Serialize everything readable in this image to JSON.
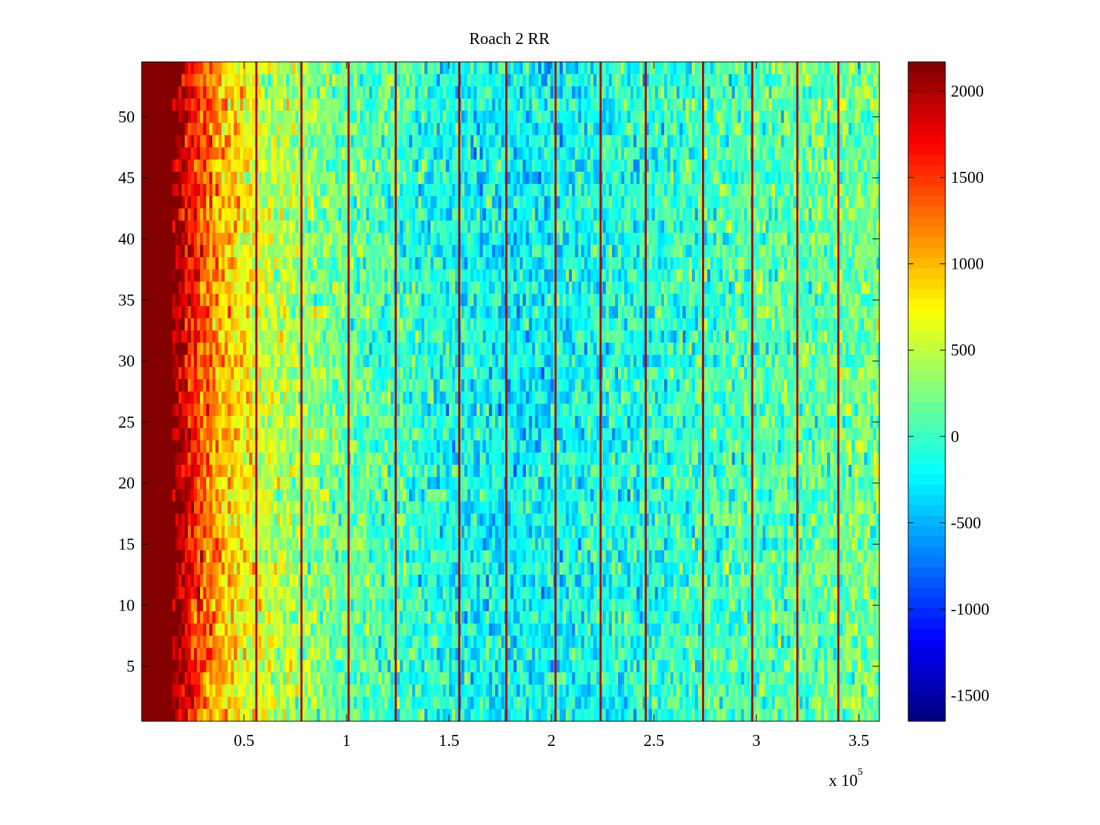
{
  "chart_data": {
    "type": "heatmap",
    "title": "Roach 2 RR",
    "xlabel": "",
    "ylabel": "",
    "x_exponent_label": "x 10",
    "x_exponent_power": "5",
    "xlim": [
      0,
      360000
    ],
    "ylim": [
      0.5,
      54.5
    ],
    "x_scale_divisor": 100000,
    "x_ticks": [
      0.5,
      1,
      1.5,
      2,
      2.5,
      3,
      3.5
    ],
    "x_tick_labels": [
      "0.5",
      "1",
      "1.5",
      "2",
      "2.5",
      "3",
      "3.5"
    ],
    "y_ticks": [
      5,
      10,
      15,
      20,
      25,
      30,
      35,
      40,
      45,
      50
    ],
    "y_tick_labels": [
      "5",
      "10",
      "15",
      "20",
      "25",
      "30",
      "35",
      "40",
      "45",
      "50"
    ],
    "colorbar": {
      "colormap": "jet",
      "clim": [
        -1650,
        2170
      ],
      "ticks": [
        -1500,
        -1000,
        -500,
        0,
        500,
        1000,
        1500,
        2000
      ],
      "tick_labels": [
        "-1500",
        "-1000",
        "-500",
        "0",
        "500",
        "1000",
        "1500",
        "2000"
      ]
    },
    "rows": 54,
    "column_profile": {
      "x": [
        0,
        15000,
        20000,
        25000,
        30000,
        40000,
        50000,
        60000,
        70000,
        80000,
        100000,
        120000,
        150000,
        180000,
        200000,
        230000,
        260000,
        290000,
        320000,
        340000,
        360000
      ],
      "mean_value": [
        2150,
        2150,
        1950,
        1600,
        1350,
        1000,
        750,
        550,
        420,
        330,
        180,
        40,
        -150,
        -230,
        -200,
        -120,
        -30,
        50,
        120,
        180,
        220
      ]
    },
    "spike_columns_x": [
      56000,
      78000,
      101000,
      124000,
      155000,
      178000,
      202000,
      224000,
      246000,
      274000,
      298000,
      320000,
      340000
    ],
    "grid": false,
    "legend": "none"
  }
}
